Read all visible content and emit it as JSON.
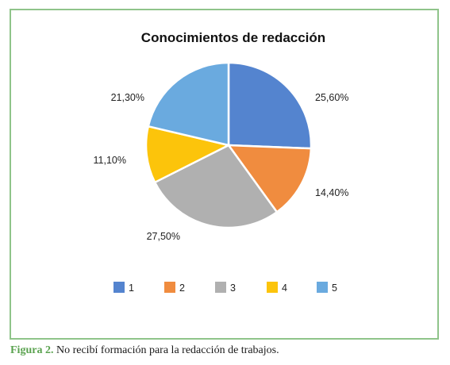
{
  "caption": {
    "label": "Figura 2.",
    "text": "No recibí formación para la redacción de trabajos."
  },
  "chart_data": {
    "type": "pie",
    "title": "Conocimientos de redacción",
    "categories": [
      "1",
      "2",
      "3",
      "4",
      "5"
    ],
    "values": [
      25.6,
      14.4,
      27.5,
      11.1,
      21.3
    ],
    "value_labels": [
      "25,60%",
      "14,40%",
      "27,50%",
      "11,10%",
      "21,30%"
    ],
    "colors": [
      "#5484cf",
      "#f08c3f",
      "#b0b0b0",
      "#fcc40b",
      "#6aaadf"
    ],
    "start_angle": "12 o'clock",
    "direction": "clockwise",
    "legend_position": "bottom"
  }
}
